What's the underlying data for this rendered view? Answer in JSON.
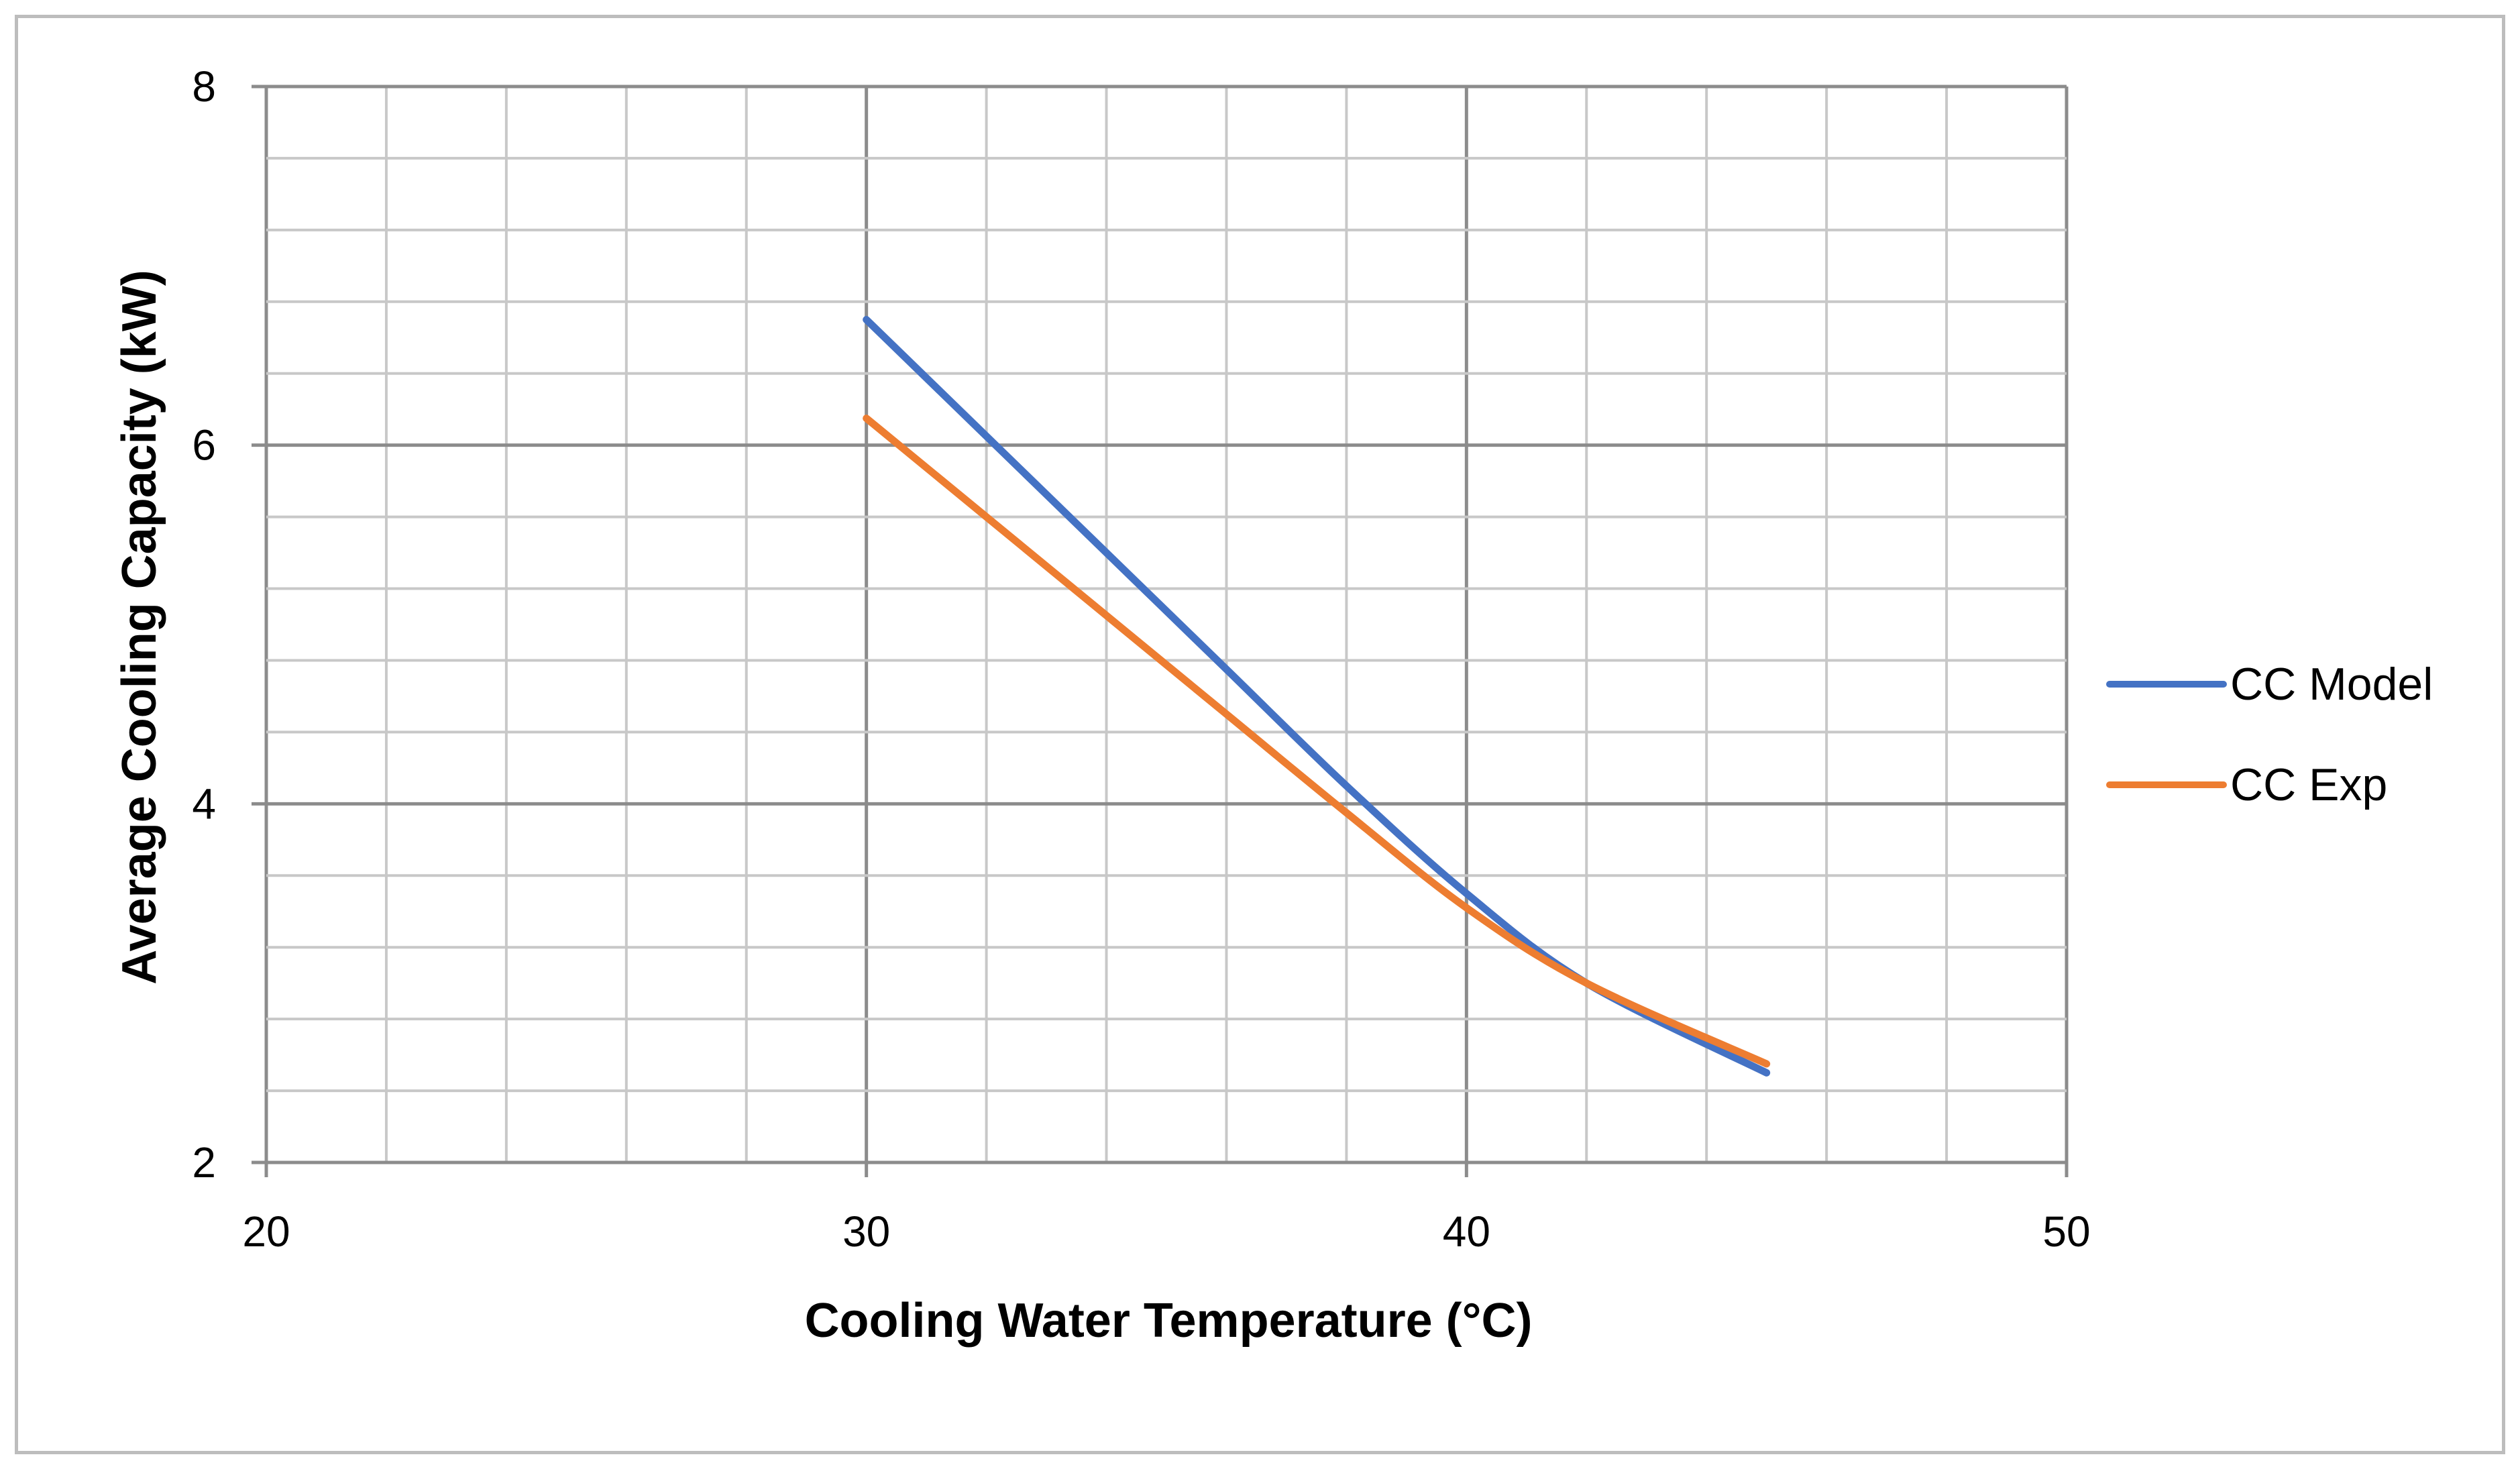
{
  "chart_data": {
    "type": "line",
    "title": "",
    "xlabel": "Cooling Water Temperature (°C)",
    "ylabel": "Average Cooling Capacity (kW)",
    "xlim": [
      20,
      50
    ],
    "ylim": [
      2,
      8
    ],
    "x_major_ticks": [
      20,
      30,
      40,
      50
    ],
    "y_major_ticks": [
      2,
      4,
      6,
      8
    ],
    "x_minor_step": 2,
    "y_minor_step": 0.4,
    "grid": true,
    "legend_position": "right",
    "series": [
      {
        "name": "CC Model",
        "color": "#4472C4",
        "x": [
          30,
          32,
          34,
          36,
          38,
          40,
          42,
          45
        ],
        "y": [
          6.7,
          6.05,
          5.4,
          4.75,
          4.1,
          3.5,
          3.0,
          2.5
        ]
      },
      {
        "name": "CC Exp",
        "color": "#ED7D31",
        "x": [
          30,
          32,
          34,
          36,
          38,
          40,
          42,
          45
        ],
        "y": [
          6.15,
          5.6,
          5.05,
          4.5,
          3.95,
          3.42,
          3.0,
          2.55
        ]
      }
    ]
  },
  "colors": {
    "grid_minor": "#c8c8c8",
    "grid_major": "#8c8c8c",
    "frame": "#bdbdbd"
  }
}
